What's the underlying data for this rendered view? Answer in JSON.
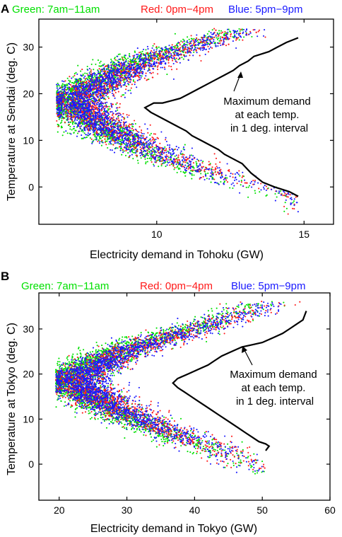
{
  "colors": {
    "green": "#00e000",
    "red": "#ff1a1a",
    "blue": "#1a1aff",
    "frontier": "#000000",
    "axis": "#000000"
  },
  "chart_data": [
    {
      "panel_label": "A",
      "type": "scatter",
      "legend": [
        {
          "text": "Green: 7am−11am",
          "color": "#00e000"
        },
        {
          "text": "Red: 0pm−4pm",
          "color": "#ff1a1a"
        },
        {
          "text": "Blue: 5pm−9pm",
          "color": "#1a1aff"
        }
      ],
      "legend_placement": "top",
      "xlabel": "Electricity demand in Tohoku (GW)",
      "ylabel": "Temperature at Sendai (deg. C)",
      "xlim": [
        6,
        16
      ],
      "ylim": [
        -8,
        36
      ],
      "xticks": [
        10,
        15
      ],
      "yticks": [
        0,
        10,
        20,
        30
      ],
      "grid": false,
      "annotation": {
        "lines": [
          "Maximum demand",
          "at each temp.",
          "in 1 deg. interval"
        ],
        "arrow_to": [
          13.5,
          28.5
        ]
      },
      "series": [
        {
          "color": "green",
          "points": 2200
        },
        {
          "color": "red",
          "points": 1700
        },
        {
          "color": "blue",
          "points": 2200
        }
      ],
      "max_demand_line": {
        "x": [
          14.8,
          14.4,
          14.1,
          13.8,
          13.3,
          13.1,
          12.8,
          12.6,
          12.3,
          12.0,
          11.7,
          11.4,
          11.1,
          10.8,
          10.5,
          10.2,
          9.9,
          9.6,
          9.8,
          10.1,
          10.4,
          10.7,
          11.0,
          11.2,
          11.5,
          11.8,
          12.1,
          12.3,
          12.6,
          12.9,
          13.2,
          13.6,
          14.0,
          14.5,
          14.8
        ],
        "y": [
          32,
          31,
          30,
          29,
          28,
          27,
          26,
          25,
          24,
          23,
          22,
          21,
          20,
          19,
          18.5,
          18,
          18,
          17,
          16,
          15,
          14,
          13,
          12,
          11,
          10,
          9,
          8,
          7,
          6,
          5,
          3,
          1,
          0,
          -1,
          -2
        ]
      }
    },
    {
      "panel_label": "B",
      "type": "scatter",
      "legend": [
        {
          "text": "Green: 7am−11am",
          "color": "#00e000"
        },
        {
          "text": "Red: 0pm−4pm",
          "color": "#ff1a1a"
        },
        {
          "text": "Blue: 5pm−9pm",
          "color": "#1a1aff"
        }
      ],
      "legend_placement": "top",
      "xlabel": "Electricity demand in Tokyo (GW)",
      "ylabel": "Temperature at Tokyo (deg. C)",
      "xlim": [
        17,
        60
      ],
      "ylim": [
        -8,
        38
      ],
      "xticks": [
        20,
        30,
        40,
        50,
        60
      ],
      "yticks": [
        0,
        10,
        20,
        30
      ],
      "grid": false,
      "annotation": {
        "lines": [
          "Maximum demand",
          "at each temp.",
          "in 1 deg. interval"
        ],
        "arrow_to": [
          46.5,
          27
        ]
      },
      "series": [
        {
          "color": "green",
          "points": 2400
        },
        {
          "color": "red",
          "points": 1900
        },
        {
          "color": "blue",
          "points": 2400
        }
      ],
      "max_demand_line": {
        "x": [
          56.5,
          56,
          55,
          54,
          53,
          51.5,
          50,
          48.5,
          47,
          45.5,
          44,
          43,
          42,
          40.5,
          39,
          37.5,
          36.8,
          37.5,
          38.5,
          39.5,
          40.5,
          41.5,
          42.5,
          43.5,
          44.5,
          45.5,
          46.5,
          47.5,
          48.5,
          49.5,
          50.5,
          51,
          50.5
        ],
        "y": [
          34,
          32,
          31,
          30,
          29,
          28,
          27,
          26.5,
          26,
          25,
          24,
          23,
          22,
          21,
          20,
          19,
          18,
          17,
          16,
          15,
          14,
          13,
          12,
          11,
          10,
          9,
          8,
          7,
          6,
          5,
          4.5,
          4,
          3
        ]
      }
    }
  ]
}
